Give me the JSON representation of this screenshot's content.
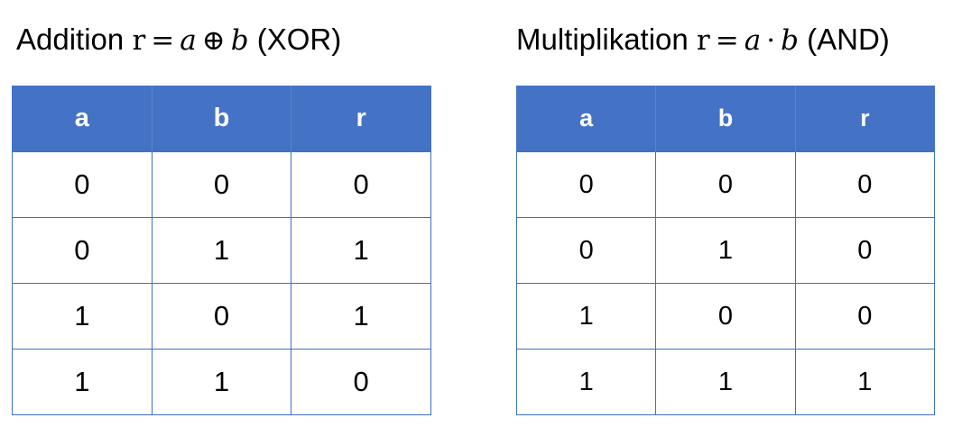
{
  "tables": [
    {
      "title_prefix": "Addition",
      "formula_lhs": "r",
      "formula_eq": "=",
      "formula_a": "a",
      "formula_op": "⊕",
      "formula_b": "b",
      "title_suffix": "(XOR)",
      "headers": [
        "a",
        "b",
        "r"
      ],
      "rows": [
        [
          "0",
          "0",
          "0"
        ],
        [
          "0",
          "1",
          "1"
        ],
        [
          "1",
          "0",
          "1"
        ],
        [
          "1",
          "1",
          "0"
        ]
      ]
    },
    {
      "title_prefix": "Multiplikation",
      "formula_lhs": "r",
      "formula_eq": "=",
      "formula_a": "a",
      "formula_op": "·",
      "formula_b": "b",
      "title_suffix": "(AND)",
      "headers": [
        "a",
        "b",
        "r"
      ],
      "rows": [
        [
          "0",
          "0",
          "0"
        ],
        [
          "0",
          "1",
          "0"
        ],
        [
          "1",
          "0",
          "0"
        ],
        [
          "1",
          "1",
          "1"
        ]
      ]
    }
  ],
  "colors": {
    "header_fill": "#4472c4",
    "header_text": "#ffffff",
    "grid_line": "#3f6fc3"
  }
}
